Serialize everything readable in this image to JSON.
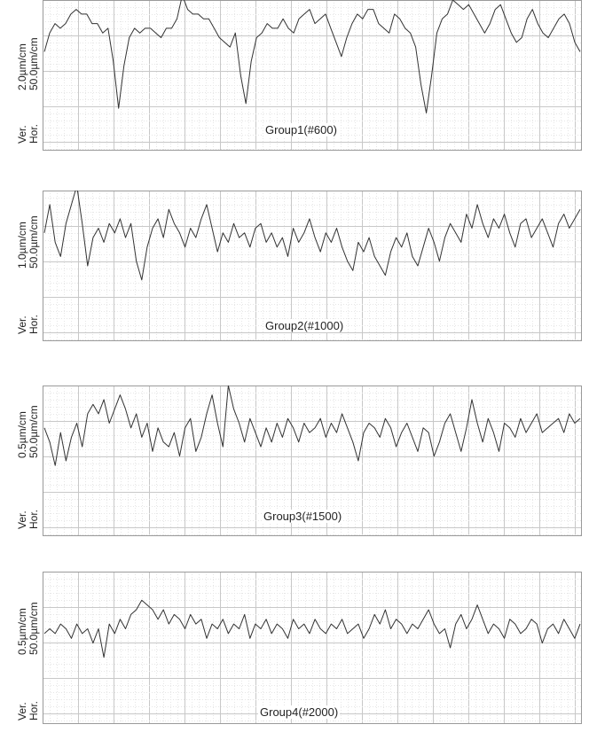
{
  "chart_data": [
    {
      "type": "line",
      "title": "",
      "caption": "Group1(#600)",
      "vertical_scale": "2.0µm/cm",
      "horizontal_scale": "50.0µm/cm",
      "ver_label": "Ver.",
      "hor_label": "Hor.",
      "grid": true,
      "x_range": [
        0,
        12
      ],
      "y_range": [
        0,
        3.2
      ],
      "series": [
        {
          "values": [
            2.1,
            2.5,
            2.7,
            2.6,
            2.7,
            2.9,
            3.0,
            2.9,
            2.9,
            2.7,
            2.7,
            2.5,
            2.6,
            1.9,
            0.9,
            1.8,
            2.4,
            2.6,
            2.5,
            2.6,
            2.6,
            2.5,
            2.4,
            2.6,
            2.6,
            2.8,
            3.3,
            3.0,
            2.9,
            2.9,
            2.8,
            2.8,
            2.6,
            2.4,
            2.3,
            2.2,
            2.5,
            1.6,
            1.0,
            1.9,
            2.4,
            2.5,
            2.7,
            2.6,
            2.6,
            2.8,
            2.6,
            2.5,
            2.8,
            2.9,
            3.0,
            2.7,
            2.8,
            2.9,
            2.6,
            2.3,
            2.0,
            2.4,
            2.7,
            2.9,
            2.8,
            3.0,
            3.0,
            2.7,
            2.6,
            2.5,
            2.9,
            2.8,
            2.6,
            2.5,
            2.2,
            1.4,
            0.8,
            1.6,
            2.5,
            2.8,
            2.9,
            3.2,
            3.1,
            3.0,
            3.1,
            2.9,
            2.7,
            2.5,
            2.7,
            3.0,
            3.1,
            2.8,
            2.5,
            2.3,
            2.4,
            2.8,
            3.0,
            2.7,
            2.5,
            2.4,
            2.6,
            2.8,
            2.9,
            2.7,
            2.3,
            2.1
          ]
        }
      ]
    },
    {
      "type": "line",
      "title": "",
      "caption": "Group2(#1000)",
      "vertical_scale": "1.0µm/cm",
      "horizontal_scale": "50.0µm/cm",
      "ver_label": "Ver.",
      "hor_label": "Hor.",
      "grid": true,
      "x_range": [
        0,
        12
      ],
      "y_range": [
        0,
        3.2
      ],
      "series": [
        {
          "values": [
            2.3,
            2.9,
            2.1,
            1.8,
            2.5,
            2.9,
            3.3,
            2.5,
            1.6,
            2.2,
            2.4,
            2.1,
            2.5,
            2.3,
            2.6,
            2.2,
            2.5,
            1.7,
            1.3,
            2.0,
            2.4,
            2.6,
            2.2,
            2.8,
            2.5,
            2.3,
            2.0,
            2.4,
            2.2,
            2.6,
            2.9,
            2.4,
            1.9,
            2.3,
            2.1,
            2.5,
            2.2,
            2.3,
            2.0,
            2.4,
            2.5,
            2.1,
            2.3,
            2.0,
            2.2,
            1.8,
            2.4,
            2.1,
            2.3,
            2.6,
            2.2,
            1.9,
            2.3,
            2.1,
            2.4,
            2.0,
            1.7,
            1.5,
            2.1,
            1.9,
            2.2,
            1.8,
            1.6,
            1.4,
            1.9,
            2.2,
            2.0,
            2.3,
            1.8,
            1.6,
            2.0,
            2.4,
            2.1,
            1.7,
            2.2,
            2.5,
            2.3,
            2.1,
            2.7,
            2.4,
            2.9,
            2.5,
            2.2,
            2.6,
            2.4,
            2.7,
            2.3,
            2.0,
            2.5,
            2.6,
            2.2,
            2.4,
            2.6,
            2.3,
            2.0,
            2.5,
            2.7,
            2.4,
            2.6,
            2.8
          ]
        }
      ]
    },
    {
      "type": "line",
      "title": "",
      "caption": "Group3(#1500)",
      "vertical_scale": "0.5µm/cm",
      "horizontal_scale": "50.0µm/cm",
      "ver_label": "Ver.",
      "hor_label": "Hor.",
      "grid": true,
      "x_range": [
        0,
        12
      ],
      "y_range": [
        0,
        3.2
      ],
      "series": [
        {
          "values": [
            2.3,
            2.0,
            1.5,
            2.2,
            1.6,
            2.1,
            2.4,
            1.9,
            2.6,
            2.8,
            2.6,
            2.9,
            2.4,
            2.7,
            3.0,
            2.7,
            2.3,
            2.6,
            2.1,
            2.4,
            1.8,
            2.3,
            2.0,
            1.9,
            2.2,
            1.7,
            2.3,
            2.5,
            1.8,
            2.1,
            2.6,
            3.0,
            2.4,
            1.9,
            3.2,
            2.7,
            2.4,
            2.0,
            2.5,
            2.2,
            1.9,
            2.3,
            2.0,
            2.4,
            2.1,
            2.5,
            2.3,
            2.0,
            2.4,
            2.2,
            2.3,
            2.5,
            2.1,
            2.4,
            2.2,
            2.6,
            2.3,
            2.0,
            1.6,
            2.2,
            2.4,
            2.3,
            2.1,
            2.5,
            2.3,
            1.9,
            2.2,
            2.4,
            2.1,
            1.8,
            2.3,
            2.2,
            1.7,
            2.0,
            2.4,
            2.6,
            2.2,
            1.8,
            2.3,
            2.9,
            2.4,
            2.0,
            2.5,
            2.2,
            1.8,
            2.4,
            2.3,
            2.1,
            2.5,
            2.2,
            2.4,
            2.6,
            2.2,
            2.3,
            2.4,
            2.5,
            2.2,
            2.6,
            2.4,
            2.5
          ]
        }
      ]
    },
    {
      "type": "line",
      "title": "",
      "caption": "Group4(#2000)",
      "vertical_scale": "0.5µm/cm",
      "horizontal_scale": "50.0µm/cm",
      "ver_label": "Ver.",
      "hor_label": "Hor.",
      "grid": true,
      "x_range": [
        0,
        12
      ],
      "y_range": [
        0,
        3.2
      ],
      "series": [
        {
          "values": [
            1.9,
            2.0,
            1.9,
            2.1,
            2.0,
            1.8,
            2.1,
            1.9,
            2.0,
            1.7,
            2.0,
            1.4,
            2.1,
            1.9,
            2.2,
            2.0,
            2.3,
            2.4,
            2.6,
            2.5,
            2.4,
            2.2,
            2.4,
            2.1,
            2.3,
            2.2,
            2.0,
            2.3,
            2.1,
            2.2,
            1.8,
            2.1,
            2.0,
            2.2,
            1.9,
            2.1,
            2.0,
            2.3,
            1.8,
            2.1,
            2.0,
            2.2,
            1.9,
            2.1,
            2.0,
            1.8,
            2.2,
            2.0,
            2.1,
            1.9,
            2.2,
            2.0,
            1.9,
            2.1,
            2.0,
            2.2,
            1.9,
            2.0,
            2.1,
            1.8,
            2.0,
            2.3,
            2.1,
            2.4,
            2.0,
            2.2,
            2.1,
            1.9,
            2.1,
            2.0,
            2.2,
            2.4,
            2.1,
            1.9,
            2.0,
            1.6,
            2.1,
            2.3,
            2.0,
            2.2,
            2.5,
            2.2,
            1.9,
            2.1,
            2.0,
            1.8,
            2.2,
            2.1,
            1.9,
            2.0,
            2.2,
            2.1,
            1.7,
            2.0,
            2.1,
            1.9,
            2.2,
            2.0,
            1.8,
            2.1
          ]
        }
      ]
    }
  ]
}
